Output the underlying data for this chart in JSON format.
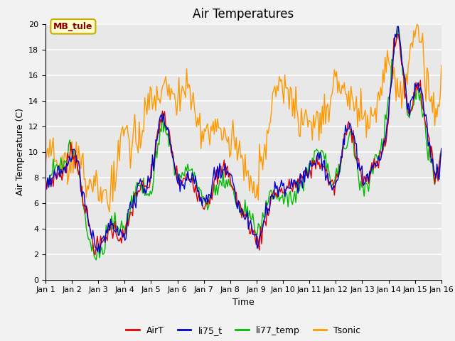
{
  "title": "Air Temperatures",
  "xlabel": "Time",
  "ylabel": "Air Temperature (C)",
  "ylim": [
    0,
    20
  ],
  "n_days": 15,
  "pts_per_day": 24,
  "annotation_text": "MB_tule",
  "colors": {
    "AirT": "#dd0000",
    "li75_t": "#0000cc",
    "li77_temp": "#00bb00",
    "Tsonic": "#ff9900"
  },
  "legend_labels": [
    "AirT",
    "li75_t",
    "li77_temp",
    "Tsonic"
  ],
  "xtick_labels": [
    "Jan 1",
    "Jan 2",
    "Jan 3",
    "Jan 4",
    "Jan 5",
    "Jan 6",
    "Jan 7",
    "Jan 8",
    "Jan 9",
    "Jan 10",
    "Jan 11",
    "Jan 12",
    "Jan 13",
    "Jan 14",
    "Jan 15",
    "Jan 16"
  ],
  "grid_color": "#ffffff",
  "plot_bg_color": "#e8e8e8",
  "fig_bg_color": "#f2f2f2",
  "linewidth": 1.0,
  "title_fontsize": 12,
  "axis_fontsize": 9,
  "tick_fontsize": 8,
  "legend_fontsize": 9
}
